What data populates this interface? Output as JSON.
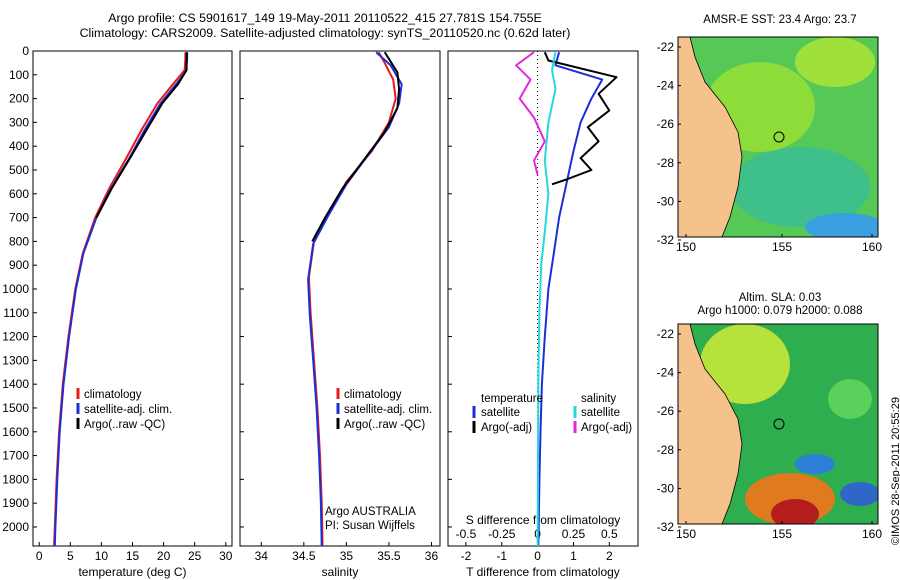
{
  "header": {
    "title_line1": "Argo profile: CS 5901617_149 19-May-2011 20110522_415 27.781S 154.755E",
    "title_line2": "Climatology: CARS2009. Satellite-adjusted climatology: synTS_20110520.nc (0.62d later)"
  },
  "colors": {
    "climatology": "#e8191a",
    "satellite": "#1c2fd6",
    "argo": "#000000",
    "salinity_satellite": "#23d8df",
    "salinity_argo": "#e22ad9",
    "land": "#f6c28c"
  },
  "chart_data": [
    {
      "id": "temperature-panel",
      "type": "line",
      "xlabel": "temperature (deg C)",
      "ylabel": "",
      "xlim": [
        -1,
        31
      ],
      "ylim": [
        2080,
        0
      ],
      "xticks": [
        0,
        5,
        10,
        15,
        20,
        25,
        30
      ],
      "yticks": [
        0,
        100,
        200,
        300,
        400,
        500,
        600,
        700,
        800,
        900,
        1000,
        1100,
        1200,
        1300,
        1400,
        1500,
        1600,
        1700,
        1800,
        1900,
        2000
      ],
      "legend": [
        "climatology",
        "satellite-adj. clim.",
        "Argo(..raw -QC)"
      ],
      "legend_position": "lower-center",
      "series": [
        {
          "name": "climatology",
          "color_key": "climatology",
          "points": [
            [
              23.5,
              5
            ],
            [
              23.5,
              30
            ],
            [
              23.4,
              80
            ],
            [
              21.5,
              140
            ],
            [
              19.0,
              220
            ],
            [
              16.5,
              330
            ],
            [
              14.0,
              450
            ],
            [
              11.2,
              580
            ],
            [
              9.0,
              700
            ],
            [
              7.0,
              850
            ],
            [
              5.8,
              1000
            ],
            [
              4.7,
              1200
            ],
            [
              3.8,
              1400
            ],
            [
              3.2,
              1600
            ],
            [
              2.8,
              1800
            ],
            [
              2.5,
              2000
            ],
            [
              2.4,
              2080
            ]
          ]
        },
        {
          "name": "satellite-adj. clim.",
          "color_key": "satellite",
          "points": [
            [
              23.8,
              5
            ],
            [
              23.8,
              30
            ],
            [
              23.6,
              85
            ],
            [
              22.0,
              140
            ],
            [
              19.5,
              220
            ],
            [
              17.0,
              330
            ],
            [
              14.5,
              450
            ],
            [
              11.5,
              580
            ],
            [
              9.2,
              700
            ],
            [
              7.1,
              850
            ],
            [
              5.9,
              1000
            ],
            [
              4.8,
              1200
            ],
            [
              3.9,
              1400
            ],
            [
              3.3,
              1600
            ],
            [
              2.9,
              1800
            ],
            [
              2.6,
              2000
            ],
            [
              2.5,
              2080
            ]
          ]
        },
        {
          "name": "Argo(..raw -QC)",
          "color_key": "argo",
          "points": [
            [
              23.7,
              5
            ],
            [
              23.7,
              80
            ],
            [
              22.3,
              140
            ],
            [
              19.8,
              220
            ],
            [
              17.3,
              330
            ],
            [
              14.6,
              450
            ],
            [
              11.6,
              580
            ],
            [
              9.2,
              700
            ]
          ]
        }
      ]
    },
    {
      "id": "salinity-panel",
      "type": "line",
      "xlabel": "salinity",
      "ylabel": "",
      "xlim": [
        33.75,
        36.1
      ],
      "ylim": [
        2080,
        0
      ],
      "xticks": [
        34,
        34.5,
        35,
        35.5,
        36
      ],
      "legend": [
        "climatology",
        "satellite-adj. clim.",
        "Argo(..raw -QC)"
      ],
      "legend_position": "lower-center",
      "annotation": [
        "Argo AUSTRALIA",
        "PI: Susan Wijffels"
      ],
      "series": [
        {
          "name": "climatology",
          "color_key": "climatology",
          "points": [
            [
              35.38,
              5
            ],
            [
              35.45,
              50
            ],
            [
              35.55,
              120
            ],
            [
              35.58,
              200
            ],
            [
              35.5,
              300
            ],
            [
              35.3,
              420
            ],
            [
              35.0,
              550
            ],
            [
              34.8,
              680
            ],
            [
              34.62,
              800
            ],
            [
              34.56,
              950
            ],
            [
              34.58,
              1100
            ],
            [
              34.62,
              1300
            ],
            [
              34.66,
              1500
            ],
            [
              34.69,
              1700
            ],
            [
              34.71,
              1900
            ],
            [
              34.72,
              2080
            ]
          ]
        },
        {
          "name": "satellite-adj. clim.",
          "color_key": "satellite",
          "points": [
            [
              35.35,
              5
            ],
            [
              35.52,
              60
            ],
            [
              35.65,
              140
            ],
            [
              35.62,
              220
            ],
            [
              35.5,
              320
            ],
            [
              35.27,
              430
            ],
            [
              35.0,
              560
            ],
            [
              34.79,
              690
            ],
            [
              34.61,
              810
            ],
            [
              34.55,
              960
            ],
            [
              34.57,
              1110
            ],
            [
              34.61,
              1300
            ],
            [
              34.65,
              1500
            ],
            [
              34.68,
              1700
            ],
            [
              34.7,
              1900
            ],
            [
              34.71,
              2080
            ]
          ]
        },
        {
          "name": "Argo(..raw -QC)",
          "color_key": "argo",
          "points": [
            [
              35.45,
              5
            ],
            [
              35.6,
              90
            ],
            [
              35.62,
              160
            ],
            [
              35.6,
              240
            ],
            [
              35.45,
              340
            ],
            [
              35.2,
              460
            ],
            [
              34.95,
              580
            ],
            [
              34.75,
              700
            ],
            [
              34.6,
              800
            ]
          ]
        }
      ]
    },
    {
      "id": "difference-panel",
      "type": "line",
      "xlabel": "T difference from climatology",
      "top_xlabel": "S difference from climatology",
      "xlim": [
        -2.5,
        2.8
      ],
      "ylim": [
        2080,
        0
      ],
      "xticks": [
        -2,
        -1,
        0,
        1,
        2
      ],
      "top_xticks": [
        "-0.5",
        "-0.25",
        "0",
        "0.25",
        "0.5"
      ],
      "legend": {
        "temperature": {
          "title": "temperature",
          "entries": [
            "satellite",
            "Argo(-adj)"
          ]
        },
        "salinity": {
          "title": "salinity",
          "entries": [
            "satellite",
            "Argo(-adj)"
          ]
        }
      },
      "legend_position": "lower-center",
      "series": [
        {
          "name": "temperature satellite",
          "color_key": "satellite",
          "points": [
            [
              0.6,
              5
            ],
            [
              0.5,
              60
            ],
            [
              1.8,
              120
            ],
            [
              1.5,
              200
            ],
            [
              1.2,
              300
            ],
            [
              1.0,
              420
            ],
            [
              0.8,
              560
            ],
            [
              0.6,
              700
            ],
            [
              0.45,
              850
            ],
            [
              0.3,
              1000
            ],
            [
              0.2,
              1200
            ],
            [
              0.12,
              1400
            ],
            [
              0.08,
              1600
            ],
            [
              0.05,
              1800
            ],
            [
              0.03,
              2000
            ],
            [
              0.02,
              2080
            ]
          ]
        },
        {
          "name": "temperature Argo(-adj)",
          "color_key": "argo",
          "points": [
            [
              0.2,
              5
            ],
            [
              0.3,
              40
            ],
            [
              2.2,
              110
            ],
            [
              1.7,
              180
            ],
            [
              2.0,
              250
            ],
            [
              1.4,
              320
            ],
            [
              1.7,
              380
            ],
            [
              1.2,
              450
            ],
            [
              1.5,
              500
            ],
            [
              0.8,
              540
            ],
            [
              0.4,
              560
            ]
          ]
        },
        {
          "name": "salinity satellite",
          "color_key": "salinity_satellite",
          "points": [
            [
              0.5,
              5
            ],
            [
              0.4,
              80
            ],
            [
              0.5,
              160
            ],
            [
              0.3,
              300
            ],
            [
              0.2,
              460
            ],
            [
              0.3,
              600
            ],
            [
              0.2,
              760
            ],
            [
              0.1,
              900
            ],
            [
              0.05,
              1100
            ],
            [
              0.02,
              1400
            ],
            [
              0.01,
              1800
            ],
            [
              0.0,
              2080
            ]
          ]
        },
        {
          "name": "salinity Argo(-adj)",
          "color_key": "salinity_argo",
          "points": [
            [
              -0.1,
              5
            ],
            [
              -0.6,
              60
            ],
            [
              -0.2,
              120
            ],
            [
              -0.5,
              200
            ],
            [
              -0.1,
              280
            ],
            [
              0.2,
              380
            ],
            [
              -0.1,
              460
            ],
            [
              0.0,
              520
            ]
          ]
        }
      ]
    }
  ],
  "maps": {
    "sst": {
      "title": "AMSR-E SST: 23.4  Argo: 23.7",
      "lat_ticks": [
        "-22",
        "-24",
        "-26",
        "-28",
        "-30",
        "-32"
      ],
      "lon_ticks": [
        "150",
        "155",
        "160"
      ]
    },
    "sla": {
      "title_line1": "Altim. SLA: 0.03",
      "title_line2": "Argo h1000: 0.079 h2000: 0.088",
      "lat_ticks": [
        "-22",
        "-24",
        "-26",
        "-28",
        "-30",
        "-32"
      ],
      "lon_ticks": [
        "150",
        "155",
        "160"
      ]
    }
  },
  "footer": {
    "credit": "©IMOS 28-Sep-2011 20:55:29"
  }
}
